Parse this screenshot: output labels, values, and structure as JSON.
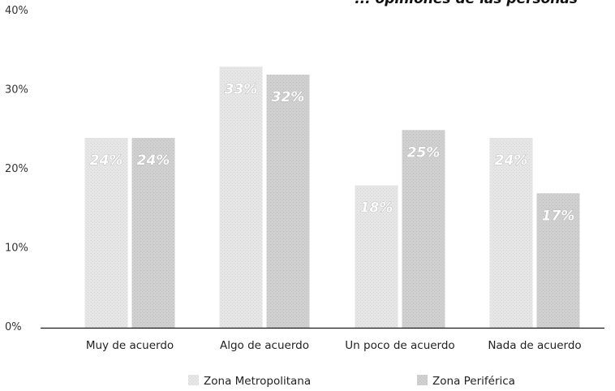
{
  "chart_data": {
    "type": "bar",
    "title": "... opiniones de las personas",
    "categories": [
      "Muy de acuerdo",
      "Algo de acuerdo",
      "Un poco de acuerdo",
      "Nada de acuerdo"
    ],
    "series": [
      {
        "name": "Zona Metropolitana",
        "values": [
          24,
          33,
          18,
          24
        ],
        "labels": [
          "24%",
          "33%",
          "18%",
          "24%"
        ],
        "color": "#e4e4e4"
      },
      {
        "name": "Zona Periférica",
        "values": [
          24,
          32,
          25,
          17
        ],
        "labels": [
          "24%",
          "32%",
          "25%",
          "17%"
        ],
        "color": "#cfcfcf"
      }
    ],
    "y_ticks": [
      {
        "value": 0,
        "label": "0%"
      },
      {
        "value": 10,
        "label": "10%"
      },
      {
        "value": 20,
        "label": "20%"
      },
      {
        "value": 30,
        "label": "30%"
      },
      {
        "value": 40,
        "label": "40%"
      }
    ],
    "ylim": [
      0,
      40
    ],
    "grid": false,
    "legend_position": "bottom"
  }
}
